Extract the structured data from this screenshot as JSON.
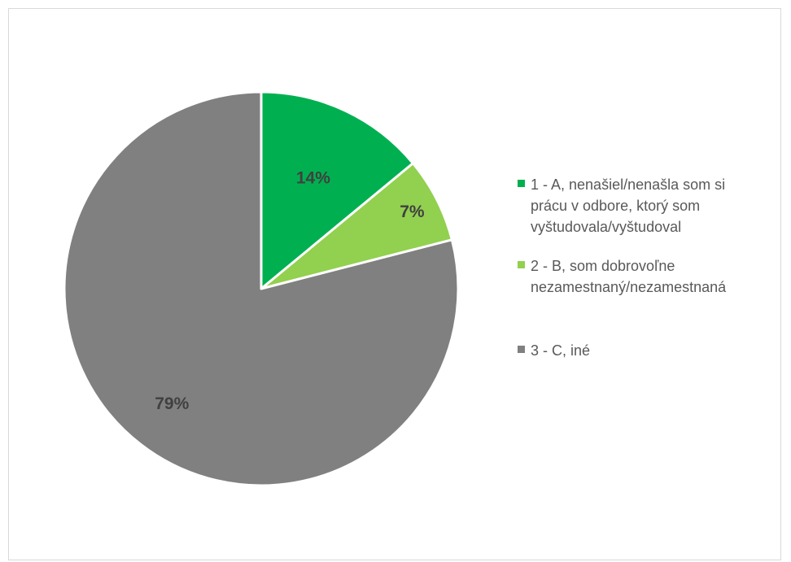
{
  "chart_data": {
    "type": "pie",
    "title": "",
    "categories": [
      "1 - A, nenašiel/nenašla som si\nprácu v odbore, ktorý som\nvyštudovala/vyštudoval",
      "2 - B, som dobrovoľne\nnezamestnaný/nezamestnaná",
      "3 - C, iné"
    ],
    "values": [
      14,
      7,
      79
    ],
    "data_labels": [
      "14%",
      "7%",
      "79%"
    ],
    "colors": [
      "#00b050",
      "#92d050",
      "#808080"
    ],
    "start_angle_deg": 0,
    "direction": "clockwise",
    "legend_position": "right"
  }
}
